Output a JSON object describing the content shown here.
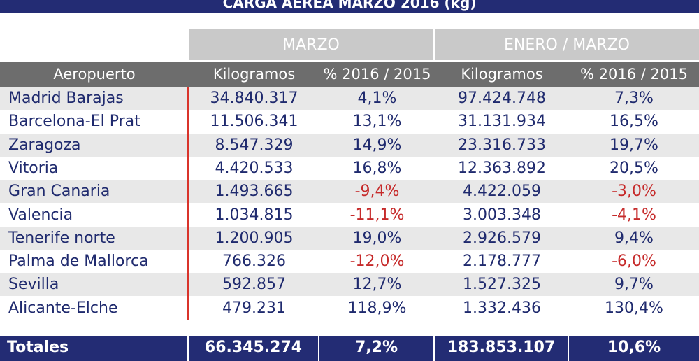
{
  "header": {
    "title": "CARGA AEREA MARZO 2016 (kg)"
  },
  "table": {
    "group_headers": [
      "MARZO",
      "ENERO / MARZO"
    ],
    "columns": [
      "Aeropuerto",
      "Kilogramos",
      "% 2016 / 2015",
      "Kilogramos",
      "% 2016 / 2015"
    ],
    "rows": [
      [
        "Madrid Barajas",
        "34.840.317",
        "4,1%",
        "97.424.748",
        "7,3%"
      ],
      [
        "Barcelona-El Prat",
        "11.506.341",
        "13,1%",
        "31.131.934",
        "16,5%"
      ],
      [
        "Zaragoza",
        "8.547.329",
        "14,9%",
        "23.316.733",
        "19,7%"
      ],
      [
        "Vitoria",
        "4.420.533",
        "16,8%",
        "12.363.892",
        "20,5%"
      ],
      [
        "Gran Canaria",
        "1.493.665",
        "-9,4%",
        "4.422.059",
        "-3,0%"
      ],
      [
        "Valencia",
        "1.034.815",
        "-11,1%",
        "3.003.348",
        "-4,1%"
      ],
      [
        "Tenerife norte",
        "1.200.905",
        "19,0%",
        "2.926.579",
        "9,4%"
      ],
      [
        "Palma de Mallorca",
        "766.326",
        "-12,0%",
        "2.178.777",
        "-6,0%"
      ],
      [
        "Sevilla",
        "592.857",
        "12,7%",
        "1.527.325",
        "9,7%"
      ],
      [
        "Alicante-Elche",
        "479.231",
        "118,9%",
        "1.332.436",
        "130,4%"
      ]
    ],
    "totals": [
      "Totales",
      "66.345.274",
      "7,2%",
      "183.853.107",
      "10,6%"
    ]
  }
}
